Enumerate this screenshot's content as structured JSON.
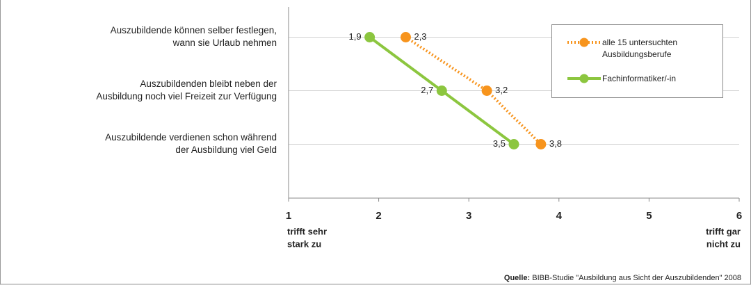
{
  "chart_data": {
    "type": "line",
    "orientation": "horizontal",
    "categories": [
      [
        "Auszubildende können selber festlegen,",
        "wann sie Urlaub nehmen"
      ],
      [
        "Auszubildenden bleibt neben der",
        "Ausbildung noch viel Freizeit zur Verfügung"
      ],
      [
        "Auszubildende verdienen schon während",
        "der Ausbildung viel Geld"
      ]
    ],
    "series": [
      {
        "name": "alle 15 untersuchten Ausbildungsberufe",
        "color": "#f7941d",
        "dash": "dotted",
        "label_side": "right",
        "values": [
          2.3,
          3.2,
          3.8
        ],
        "value_labels": [
          "2,3",
          "3,2",
          "3,8"
        ]
      },
      {
        "name": "Fachinformatiker/-in",
        "color": "#8cc63f",
        "dash": "solid",
        "label_side": "left",
        "values": [
          1.9,
          2.7,
          3.5
        ],
        "value_labels": [
          "1,9",
          "2,7",
          "3,5"
        ]
      }
    ],
    "xlim": [
      1,
      6
    ],
    "xticks": [
      1,
      2,
      3,
      4,
      5,
      6
    ],
    "x_min_label": [
      "trifft sehr",
      "stark zu"
    ],
    "x_max_label": [
      "trifft gar",
      "nicht zu"
    ],
    "grid": true,
    "legend": "upper right",
    "source_label": "Quelle:",
    "source": "BIBB-Studie \"Ausbildung aus Sicht der Auszubildenden\" 2008"
  }
}
